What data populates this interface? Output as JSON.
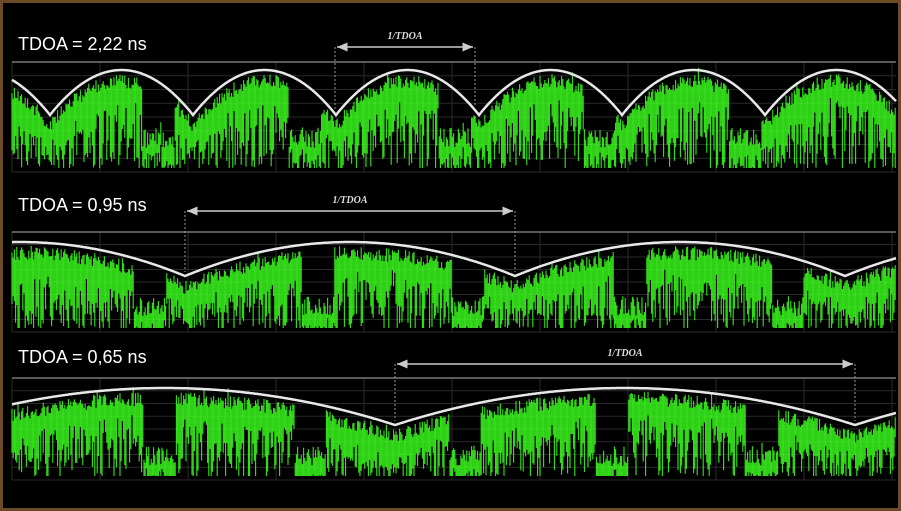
{
  "panels": [
    {
      "label": "TDOA = 2,22 ns",
      "marker": "1/TDOA"
    },
    {
      "label": "TDOA = 0,95 ns",
      "marker": "1/TDOA"
    },
    {
      "label": "TDOA = 0,65 ns",
      "marker": "1/TDOA"
    }
  ]
}
